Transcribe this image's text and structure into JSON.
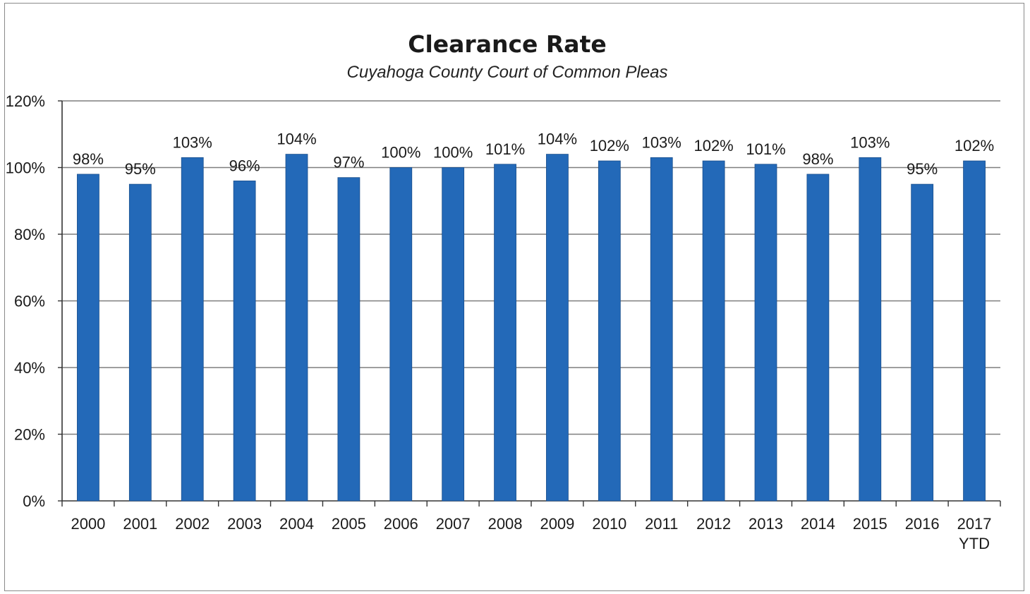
{
  "chart_data": {
    "type": "bar",
    "title": "Clearance Rate",
    "subtitle": "Cuyahoga County Court of Common Pleas",
    "categories": [
      [
        "2000"
      ],
      [
        "2001"
      ],
      [
        "2002"
      ],
      [
        "2003"
      ],
      [
        "2004"
      ],
      [
        "2005"
      ],
      [
        "2006"
      ],
      [
        "2007"
      ],
      [
        "2008"
      ],
      [
        "2009"
      ],
      [
        "2010"
      ],
      [
        "2011"
      ],
      [
        "2012"
      ],
      [
        "2013"
      ],
      [
        "2014"
      ],
      [
        "2015"
      ],
      [
        "2016"
      ],
      [
        "2017",
        "YTD"
      ]
    ],
    "values": [
      98,
      95,
      103,
      96,
      104,
      97,
      100,
      100,
      101,
      104,
      102,
      103,
      102,
      101,
      98,
      103,
      95,
      102
    ],
    "data_labels": [
      "98%",
      "95%",
      "103%",
      "96%",
      "104%",
      "97%",
      "100%",
      "100%",
      "101%",
      "104%",
      "102%",
      "103%",
      "102%",
      "101%",
      "98%",
      "103%",
      "95%",
      "102%"
    ],
    "yticks": [
      "0%",
      "20%",
      "40%",
      "60%",
      "80%",
      "100%",
      "120%"
    ],
    "ylim": [
      0,
      120
    ],
    "grid": true,
    "bar_color": "#2369b8",
    "legend": "none"
  }
}
